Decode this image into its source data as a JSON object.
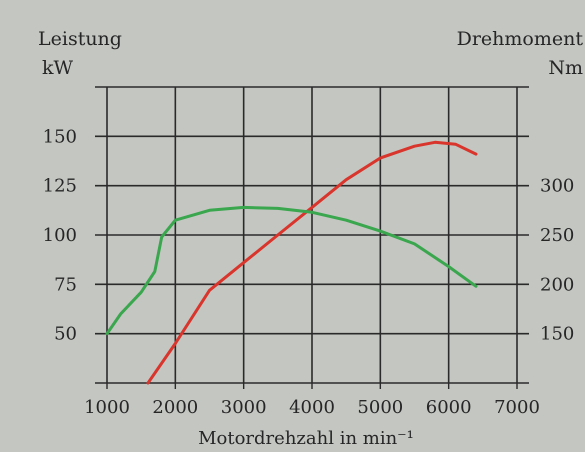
{
  "chart_data": {
    "type": "line",
    "left_axis": {
      "label_line1": "Leistung",
      "label_line2": "kW",
      "ticks": [
        50,
        75,
        100,
        125,
        150
      ],
      "range": [
        25,
        175
      ]
    },
    "right_axis": {
      "label_line1": "Drehmoment",
      "label_line2": "Nm",
      "ticks": [
        150,
        200,
        250,
        300
      ]
    },
    "x_axis": {
      "label": "Motordrehzahl in min⁻¹",
      "ticks": [
        1000,
        2000,
        3000,
        4000,
        5000,
        6000,
        7000
      ],
      "range": [
        1000,
        7000
      ]
    },
    "grid": true,
    "series": [
      {
        "axis": "left",
        "color": "#d9352c",
        "points": [
          [
            1600,
            25
          ],
          [
            2000,
            45
          ],
          [
            2500,
            72
          ],
          [
            3000,
            86
          ],
          [
            3500,
            100
          ],
          [
            4000,
            114
          ],
          [
            4500,
            128
          ],
          [
            5000,
            139
          ],
          [
            5500,
            145
          ],
          [
            5800,
            147
          ],
          [
            6100,
            146
          ],
          [
            6400,
            141
          ]
        ]
      },
      {
        "axis": "right",
        "color": "#3aa64e",
        "points": [
          [
            1000,
            150
          ],
          [
            1200,
            170
          ],
          [
            1500,
            192
          ],
          [
            1700,
            213
          ],
          [
            1800,
            248
          ],
          [
            2000,
            265
          ],
          [
            2500,
            275
          ],
          [
            3000,
            278
          ],
          [
            3500,
            277
          ],
          [
            4000,
            273
          ],
          [
            4500,
            265
          ],
          [
            5000,
            254
          ],
          [
            5500,
            241
          ],
          [
            6000,
            218
          ],
          [
            6400,
            198
          ]
        ]
      }
    ],
    "colors": {
      "grid": "#2a2a2a",
      "background": "#c3c6c1",
      "text": "#262626"
    }
  }
}
